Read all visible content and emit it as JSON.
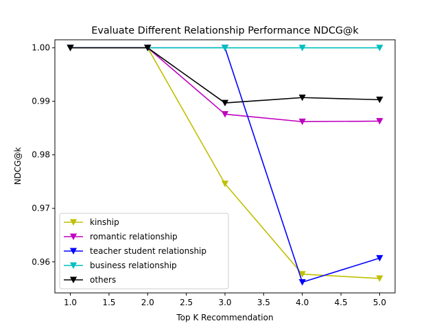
{
  "chart_data": {
    "type": "line",
    "title": "Evaluate Different Relationship Performance NDCG@k",
    "xlabel": "Top K Recommendation",
    "ylabel": "NDCG@k",
    "xlim": [
      0.8,
      5.2
    ],
    "ylim": [
      0.9542,
      1.0015
    ],
    "xticks": [
      1.0,
      1.5,
      2.0,
      2.5,
      3.0,
      3.5,
      4.0,
      4.5,
      5.0
    ],
    "xtick_labels": [
      "1.0",
      "1.5",
      "2.0",
      "2.5",
      "3.0",
      "3.5",
      "4.0",
      "4.5",
      "5.0"
    ],
    "yticks": [
      0.96,
      0.97,
      0.98,
      0.99,
      1.0
    ],
    "ytick_labels": [
      "0.96",
      "0.97",
      "0.98",
      "0.99",
      "1.00"
    ],
    "grid": false,
    "legend_position": "lower-left",
    "marker": "triangle-down",
    "x": [
      1,
      2,
      3,
      4,
      5
    ],
    "series": [
      {
        "name": "kinship",
        "color": "#bfbf00",
        "values": [
          1.0,
          1.0,
          0.9746,
          0.9577,
          0.9569
        ]
      },
      {
        "name": "romantic relationship",
        "color": "#bf00bf",
        "values": [
          1.0,
          1.0,
          0.9876,
          0.9862,
          0.9863
        ]
      },
      {
        "name": "teacher student relationship",
        "color": "#0000ff",
        "values": [
          1.0,
          1.0,
          1.0,
          0.9562,
          0.9607
        ]
      },
      {
        "name": "business relationship",
        "color": "#00bfbf",
        "values": [
          1.0,
          1.0,
          1.0,
          1.0,
          1.0
        ]
      },
      {
        "name": "others",
        "color": "#000000",
        "values": [
          1.0,
          1.0,
          0.9897,
          0.9907,
          0.9903
        ]
      }
    ]
  }
}
